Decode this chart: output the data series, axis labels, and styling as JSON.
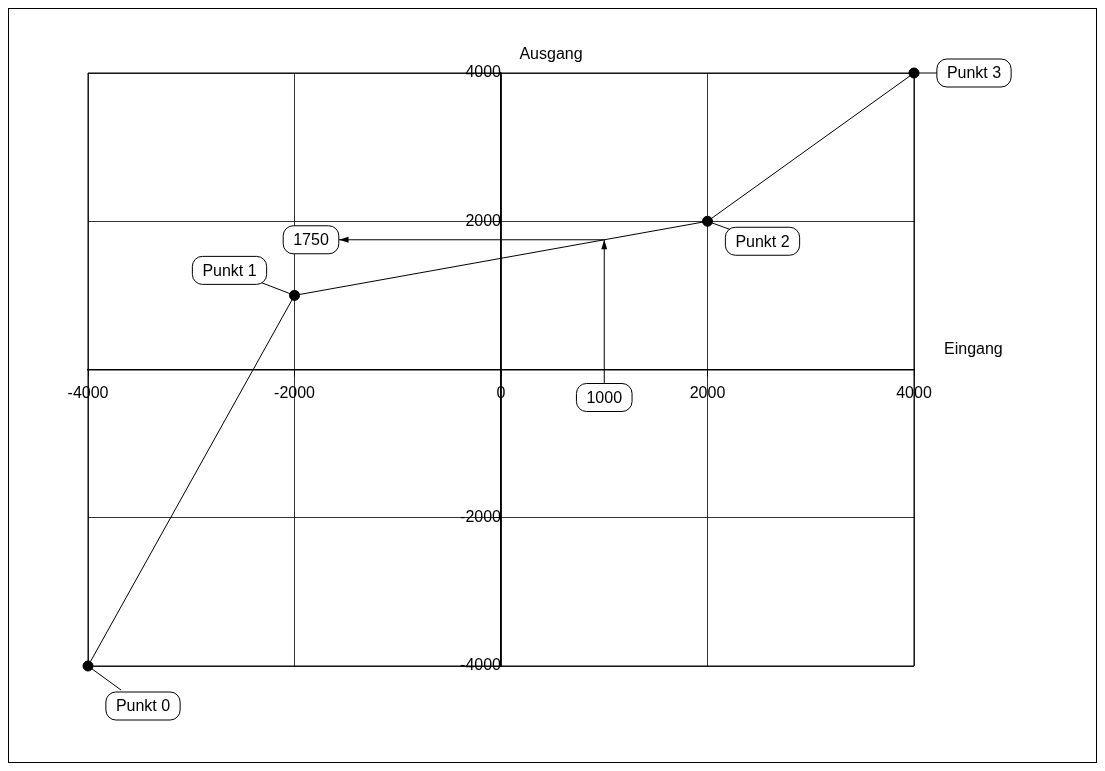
{
  "chart_data": {
    "type": "line",
    "xlabel": "Eingang",
    "ylabel": "Ausgang",
    "x": [
      -4000,
      -2000,
      2000,
      4000
    ],
    "series": [
      {
        "color": "#000000",
        "values": [
          -4000,
          1000,
          2000,
          4000
        ]
      }
    ],
    "xlim": [
      -4000,
      4000
    ],
    "ylim": [
      -4000,
      4000
    ],
    "xticks": [
      -4000,
      -2000,
      0,
      2000,
      4000
    ],
    "yticks": [
      -4000,
      -2000,
      {
        "value": 0,
        "label": null
      },
      2000,
      4000
    ],
    "grid": true,
    "legend": false,
    "marker": "circle",
    "line_style": "solid",
    "annotations": [
      {
        "text": "Punkt 0",
        "x": -4000,
        "y": -4000
      },
      {
        "text": "Punkt 1",
        "x": -2000,
        "y": 1000
      },
      {
        "text": "Punkt 2",
        "x": 2000,
        "y": 2000
      },
      {
        "text": "Punkt 3",
        "x": 4000,
        "y": 4000
      },
      {
        "text": "1750",
        "x": 1000,
        "y": 1750
      },
      {
        "text": "1000",
        "x": 1000,
        "y": 1750
      }
    ]
  }
}
